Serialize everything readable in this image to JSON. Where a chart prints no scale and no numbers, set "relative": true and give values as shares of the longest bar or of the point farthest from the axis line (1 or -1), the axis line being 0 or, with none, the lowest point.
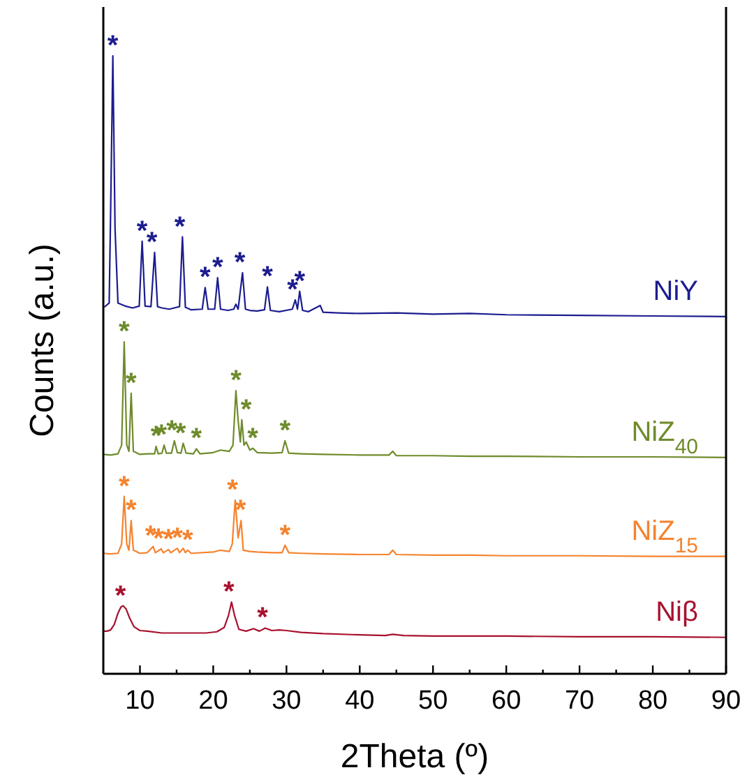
{
  "chart_data": {
    "type": "line",
    "relative": true,
    "xlabel": "2Theta (º)",
    "ylabel": "Counts (a.u.)",
    "xlim": [
      5,
      90
    ],
    "xticks": [
      10,
      {
        "value": 15,
        "label": null
      },
      20,
      {
        "value": 25,
        "label": null
      },
      30,
      {
        "value": 35,
        "label": null
      },
      40,
      {
        "value": 45,
        "label": null
      },
      50,
      {
        "value": 55,
        "label": null
      },
      60,
      {
        "value": 65,
        "label": null
      },
      70,
      {
        "value": 75,
        "label": null
      },
      80,
      {
        "value": 85,
        "label": null
      },
      90
    ],
    "grid": false,
    "legend": false,
    "marker": "none",
    "line_style": "solid",
    "series": [
      {
        "name": "NiY",
        "color": "#1c1c8f",
        "x": [
          5.2,
          5.8,
          6.0,
          6.3,
          6.6,
          7,
          8,
          9,
          9.9,
          10.3,
          10.7,
          11.5,
          12.0,
          12.4,
          13,
          14,
          15.4,
          15.8,
          16.2,
          17,
          18.5,
          18.9,
          19.3,
          20.2,
          20.6,
          21,
          22,
          22.8,
          23.1,
          23.4,
          24.0,
          24.4,
          25,
          26,
          27.0,
          27.4,
          27.8,
          29,
          30.8,
          31.2,
          31.5,
          31.8,
          32.2,
          33,
          34.6,
          35,
          37,
          40,
          45,
          50,
          55,
          60,
          70,
          80,
          90
        ],
        "values": [
          0.594,
          0.6,
          0.75,
          1.0,
          0.72,
          0.6,
          0.595,
          0.592,
          0.595,
          0.7,
          0.595,
          0.594,
          0.682,
          0.594,
          0.592,
          0.59,
          0.594,
          0.707,
          0.593,
          0.589,
          0.59,
          0.625,
          0.59,
          0.59,
          0.641,
          0.59,
          0.588,
          0.59,
          0.598,
          0.59,
          0.649,
          0.59,
          0.588,
          0.587,
          0.589,
          0.626,
          0.588,
          0.586,
          0.59,
          0.605,
          0.59,
          0.619,
          0.588,
          0.586,
          0.596,
          0.585,
          0.584,
          0.583,
          0.584,
          0.582,
          0.583,
          0.581,
          0.58,
          0.579,
          0.578
        ]
      },
      {
        "name": "NiZ$_{40}$",
        "color": "#6e8b2a",
        "x": [
          5,
          6,
          7,
          7.5,
          7.85,
          8.2,
          8.5,
          8.8,
          9.1,
          10,
          11,
          12,
          12.2,
          12.5,
          13,
          13.3,
          13.6,
          14.3,
          14.7,
          15.1,
          15.6,
          15.9,
          16.3,
          17.3,
          17.7,
          18.2,
          20,
          21,
          22.2,
          22.7,
          23.1,
          23.4,
          23.7,
          23.9,
          24.2,
          24.5,
          25,
          25.4,
          26,
          28,
          29.4,
          29.8,
          30.3,
          32,
          35,
          40,
          44,
          44.5,
          45,
          50,
          55,
          60,
          70,
          80,
          90
        ],
        "values": [
          0.355,
          0.354,
          0.356,
          0.37,
          0.537,
          0.37,
          0.36,
          0.454,
          0.36,
          0.355,
          0.356,
          0.356,
          0.368,
          0.356,
          0.357,
          0.37,
          0.357,
          0.357,
          0.377,
          0.358,
          0.357,
          0.373,
          0.357,
          0.356,
          0.364,
          0.356,
          0.358,
          0.362,
          0.36,
          0.37,
          0.458,
          0.41,
          0.375,
          0.411,
          0.37,
          0.375,
          0.362,
          0.365,
          0.358,
          0.357,
          0.358,
          0.377,
          0.357,
          0.356,
          0.355,
          0.354,
          0.354,
          0.36,
          0.353,
          0.353,
          0.352,
          0.352,
          0.351,
          0.351,
          0.35
        ]
      },
      {
        "name": "NiZ$_{15}$",
        "color": "#f5832e",
        "x": [
          5,
          6,
          7,
          7.5,
          7.85,
          8.2,
          8.5,
          8.8,
          9.1,
          10,
          11,
          11.8,
          12.1,
          12.9,
          13.2,
          13.9,
          14.2,
          15.1,
          15.4,
          15.9,
          16.2,
          16.5,
          17,
          20,
          21,
          22.2,
          22.6,
          23.0,
          23.4,
          23.8,
          24.1,
          25,
          26,
          28,
          29.4,
          29.8,
          30.3,
          32,
          35,
          40,
          44,
          44.5,
          45,
          50,
          55,
          60,
          70,
          80,
          90
        ],
        "values": [
          0.195,
          0.194,
          0.195,
          0.21,
          0.287,
          0.21,
          0.2,
          0.248,
          0.2,
          0.195,
          0.196,
          0.206,
          0.196,
          0.202,
          0.196,
          0.201,
          0.196,
          0.203,
          0.196,
          0.203,
          0.196,
          0.2,
          0.195,
          0.197,
          0.2,
          0.198,
          0.21,
          0.281,
          0.22,
          0.248,
          0.2,
          0.198,
          0.197,
          0.196,
          0.196,
          0.208,
          0.196,
          0.195,
          0.194,
          0.193,
          0.193,
          0.2,
          0.193,
          0.192,
          0.192,
          0.191,
          0.191,
          0.19,
          0.19
        ]
      },
      {
        "name": "Niβ",
        "color": "#a8112f",
        "x": [
          5,
          5.5,
          6,
          6.5,
          7,
          7.4,
          7.7,
          8.1,
          8.6,
          9.2,
          10,
          11,
          13,
          15,
          17,
          19,
          20.5,
          21.5,
          22.1,
          22.5,
          22.9,
          23.5,
          24.5,
          25.5,
          26.3,
          27.1,
          28,
          29,
          30,
          32,
          35,
          40,
          43.5,
          44.5,
          46,
          50,
          60,
          70,
          80,
          90
        ],
        "values": [
          0.069,
          0.069,
          0.071,
          0.08,
          0.098,
          0.108,
          0.11,
          0.105,
          0.09,
          0.076,
          0.07,
          0.069,
          0.066,
          0.066,
          0.066,
          0.066,
          0.068,
          0.075,
          0.095,
          0.116,
          0.095,
          0.072,
          0.069,
          0.073,
          0.069,
          0.074,
          0.07,
          0.071,
          0.07,
          0.067,
          0.065,
          0.063,
          0.062,
          0.064,
          0.062,
          0.061,
          0.061,
          0.06,
          0.06,
          0.059
        ]
      }
    ],
    "annotations": [
      {
        "text": "*",
        "x": 6.3,
        "y": 1.0
      },
      {
        "text": "*",
        "x": 10.3,
        "y": 0.7
      },
      {
        "text": "*",
        "x": 12.0,
        "y": 0.682
      },
      {
        "text": "*",
        "x": 15.8,
        "y": 0.707
      },
      {
        "text": "*",
        "x": 18.9,
        "y": 0.625
      },
      {
        "text": "*",
        "x": 20.6,
        "y": 0.641
      },
      {
        "text": "*",
        "x": 24.0,
        "y": 0.649
      },
      {
        "text": "*",
        "x": 27.4,
        "y": 0.626
      },
      {
        "text": "*",
        "x": 31.2,
        "y": 0.605
      },
      {
        "text": "*",
        "x": 31.8,
        "y": 0.619
      },
      {
        "text": "*",
        "x": 7.85,
        "y": 0.537
      },
      {
        "text": "*",
        "x": 8.8,
        "y": 0.454
      },
      {
        "text": "*",
        "x": 12.2,
        "y": 0.368
      },
      {
        "text": "*",
        "x": 13.3,
        "y": 0.37
      },
      {
        "text": "*",
        "x": 14.7,
        "y": 0.377
      },
      {
        "text": "*",
        "x": 15.9,
        "y": 0.373
      },
      {
        "text": "*",
        "x": 17.7,
        "y": 0.364
      },
      {
        "text": "*",
        "x": 23.1,
        "y": 0.458
      },
      {
        "text": "*",
        "x": 24.5,
        "y": 0.411
      },
      {
        "text": "*",
        "x": 25.4,
        "y": 0.365
      },
      {
        "text": "*",
        "x": 29.8,
        "y": 0.377
      },
      {
        "text": "*",
        "x": 7.85,
        "y": 0.287
      },
      {
        "text": "*",
        "x": 8.8,
        "y": 0.248
      },
      {
        "text": "*",
        "x": 11.8,
        "y": 0.206
      },
      {
        "text": "*",
        "x": 12.9,
        "y": 0.202
      },
      {
        "text": "*",
        "x": 13.9,
        "y": 0.201
      },
      {
        "text": "*",
        "x": 15.1,
        "y": 0.203
      },
      {
        "text": "*",
        "x": 16.5,
        "y": 0.2
      },
      {
        "text": "*",
        "x": 23.0,
        "y": 0.281
      },
      {
        "text": "*",
        "x": 24.1,
        "y": 0.248
      },
      {
        "text": "*",
        "x": 29.8,
        "y": 0.208
      },
      {
        "text": "*",
        "x": 7.7,
        "y": 0.11
      },
      {
        "text": "*",
        "x": 22.5,
        "y": 0.116
      },
      {
        "text": "*",
        "x": 27.1,
        "y": 0.074
      }
    ]
  }
}
